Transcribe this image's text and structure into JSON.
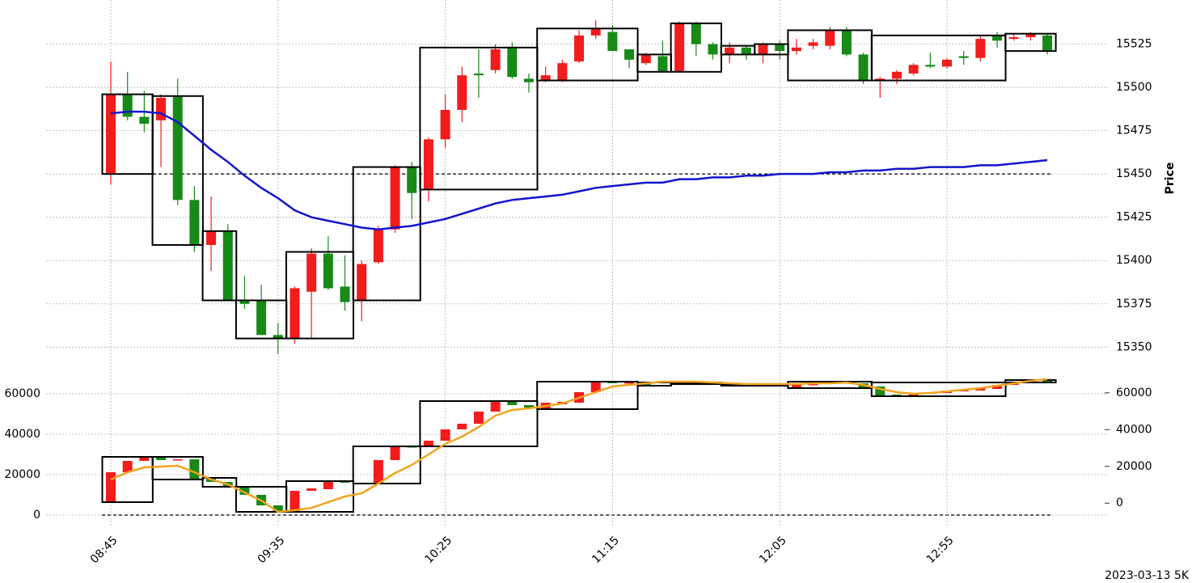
{
  "chart_data": [
    {
      "type": "candlestick",
      "y_label": "Price",
      "ylim": [
        15345,
        15550
      ],
      "yticks": [
        15350,
        15375,
        15400,
        15425,
        15450,
        15475,
        15500,
        15525
      ],
      "grid": true,
      "up_color": "#f21c1c",
      "down_color": "#178a17",
      "hline": 15450,
      "open": [
        15450,
        15496,
        15483,
        15481,
        15495,
        15435,
        15409,
        15417,
        15377,
        15377,
        15357,
        15355,
        15382,
        15404,
        15385,
        15377,
        15399,
        15418,
        15454,
        15441,
        15470,
        15487,
        15508,
        15510,
        15523,
        15505,
        15504,
        15504,
        15515,
        15530,
        15532,
        15522,
        15514,
        15518,
        15509,
        15537,
        15525,
        15519,
        15523,
        15519,
        15525,
        15521,
        15524,
        15524,
        15533,
        15519,
        15504,
        15505,
        15508,
        15513,
        15512,
        15518,
        15517,
        15530,
        15528,
        15529,
        15530
      ],
      "high": [
        15515,
        15509,
        15498,
        15496,
        15505,
        15443,
        15437,
        15421,
        15391,
        15386,
        15364,
        15385,
        15407,
        15414,
        15403,
        15400,
        15420,
        15455,
        15457,
        15471,
        15496,
        15512,
        15522,
        15525,
        15526,
        15508,
        15512,
        15516,
        15533,
        15539,
        15536,
        15522,
        15520,
        15527,
        15538,
        15538,
        15526,
        15526,
        15524,
        15526,
        15527,
        15528,
        15528,
        15535,
        15535,
        15520,
        15506,
        15510,
        15514,
        15520,
        15517,
        15521,
        15530,
        15532,
        15531,
        15532,
        15531
      ],
      "low": [
        15444,
        15481,
        15474,
        15454,
        15432,
        15405,
        15394,
        15377,
        15372,
        15357,
        15346,
        15352,
        15355,
        15383,
        15371,
        15365,
        15398,
        15416,
        15424,
        15434,
        15465,
        15480,
        15494,
        15508,
        15505,
        15497,
        15503,
        15503,
        15514,
        15528,
        15521,
        15511,
        15513,
        15509,
        15509,
        15518,
        15516,
        15514,
        15516,
        15514,
        15516,
        15519,
        15522,
        15522,
        15518,
        15502,
        15494,
        15502,
        15507,
        15511,
        15511,
        15513,
        15515,
        15523,
        15527,
        15527,
        15519
      ],
      "close": [
        15496,
        15483,
        15479,
        15494,
        15435,
        15409,
        15417,
        15377,
        15375,
        15357,
        15355,
        15384,
        15404,
        15384,
        15376,
        15398,
        15418,
        15454,
        15439,
        15470,
        15487,
        15507,
        15507,
        15522,
        15506,
        15503,
        15507,
        15514,
        15530,
        15534,
        15521,
        15516,
        15519,
        15509,
        15537,
        15525,
        15519,
        15523,
        15519,
        15525,
        15521,
        15523,
        15526,
        15533,
        15519,
        15504,
        15505,
        15509,
        15513,
        15512,
        15516,
        15517,
        15528,
        15527,
        15529,
        15531,
        15521
      ],
      "lines": [
        {
          "color": "#1414cc",
          "values": [
            15485,
            15486,
            15486,
            15485,
            15480,
            15472,
            15464,
            15457,
            15449,
            15442,
            15436,
            15429,
            15425,
            15423,
            15421,
            15419,
            15418,
            15419,
            15420,
            15422,
            15424,
            15427,
            15430,
            15433,
            15435,
            15436,
            15437,
            15438,
            15440,
            15442,
            15443,
            15444,
            15445,
            15445,
            15447,
            15447,
            15448,
            15448,
            15449,
            15449,
            15450,
            15450,
            15450,
            15451,
            15451,
            15452,
            15452,
            15453,
            15453,
            15454,
            15454,
            15454,
            15455,
            15455,
            15456,
            15457,
            15458
          ]
        }
      ],
      "boxes": [
        {
          "first": 0,
          "last": 2,
          "low": 15450,
          "high": 15496
        },
        {
          "first": 3,
          "last": 5,
          "low": 15409,
          "high": 15495
        },
        {
          "first": 6,
          "last": 7,
          "low": 15377,
          "high": 15417
        },
        {
          "first": 8,
          "last": 10,
          "low": 15355,
          "high": 15377
        },
        {
          "first": 11,
          "last": 14,
          "low": 15355,
          "high": 15405
        },
        {
          "first": 15,
          "last": 18,
          "low": 15377,
          "high": 15454
        },
        {
          "first": 19,
          "last": 25,
          "low": 15441,
          "high": 15523
        },
        {
          "first": 26,
          "last": 31,
          "low": 15504,
          "high": 15534
        },
        {
          "first": 32,
          "last": 33,
          "low": 15509,
          "high": 15519
        },
        {
          "first": 34,
          "last": 36,
          "low": 15509,
          "high": 15537
        },
        {
          "first": 37,
          "last": 38,
          "low": 15519,
          "high": 15524
        },
        {
          "first": 39,
          "last": 40,
          "low": 15519,
          "high": 15525
        },
        {
          "first": 41,
          "last": 45,
          "low": 15504,
          "high": 15533
        },
        {
          "first": 46,
          "last": 53,
          "low": 15504,
          "high": 15530
        },
        {
          "first": 54,
          "last": 56,
          "low": 15521,
          "high": 15531
        }
      ]
    },
    {
      "type": "candlestick",
      "footer": "2023-03-13 5K",
      "categories": [
        "08:45",
        null,
        null,
        null,
        null,
        null,
        null,
        null,
        null,
        null,
        "09:35",
        null,
        null,
        null,
        null,
        null,
        null,
        null,
        null,
        null,
        "10:25",
        null,
        null,
        null,
        null,
        null,
        null,
        null,
        null,
        null,
        "11:15",
        null,
        null,
        null,
        null,
        null,
        null,
        null,
        null,
        null,
        "12:05",
        null,
        null,
        null,
        null,
        null,
        null,
        null,
        null,
        null,
        "12:55",
        null,
        null,
        null,
        null,
        null,
        null
      ],
      "ylim": [
        -5000,
        75000
      ],
      "yticks": [
        0,
        20000,
        40000,
        60000
      ],
      "grid": true,
      "y2lim": [
        -12000,
        76000
      ],
      "y2ticks": [
        0,
        20000,
        40000,
        60000
      ],
      "up_color": "#f21c1c",
      "down_color": "#178a17",
      "hline": 0,
      "open": [
        6400,
        21200,
        26800,
        28400,
        27200,
        27600,
        18400,
        16400,
        14000,
        10000,
        4800,
        1600,
        12000,
        12800,
        16800,
        16000,
        16000,
        27200,
        34000,
        34400,
        36800,
        42400,
        45200,
        51200,
        56400,
        54400,
        52400,
        54800,
        55600,
        60800,
        66000,
        65200,
        65600,
        64000,
        64800,
        65600,
        65200,
        64800,
        64000,
        64000,
        64400,
        62800,
        64400,
        64800,
        66000,
        65200,
        63600,
        59600,
        58800,
        60000,
        60400,
        61200,
        61600,
        62400,
        64400,
        65600,
        66800
      ],
      "close": [
        21200,
        26800,
        28400,
        27200,
        27600,
        17600,
        16400,
        14000,
        10000,
        4800,
        1600,
        12000,
        13200,
        16400,
        16000,
        15600,
        27200,
        33600,
        33600,
        36800,
        42400,
        45200,
        51200,
        56400,
        54400,
        53200,
        55600,
        56000,
        60800,
        65600,
        65200,
        65600,
        64000,
        64400,
        65600,
        65200,
        64800,
        64000,
        64400,
        64400,
        64000,
        64400,
        64800,
        66000,
        65200,
        62800,
        58800,
        58800,
        60000,
        60800,
        61600,
        62000,
        62800,
        64400,
        65600,
        66400,
        65600
      ],
      "lines": [
        {
          "color": "#f0a41c",
          "values": [
            17600,
            21200,
            23600,
            24000,
            24400,
            21200,
            17600,
            15200,
            11200,
            7200,
            1600,
            2400,
            3600,
            6400,
            9200,
            10800,
            15600,
            20800,
            24800,
            30000,
            35200,
            38800,
            43600,
            49200,
            52000,
            52800,
            54000,
            55200,
            58000,
            60800,
            63600,
            64400,
            65200,
            66000,
            66000,
            66000,
            65600,
            65200,
            64800,
            64800,
            64800,
            64800,
            65200,
            65200,
            65600,
            64400,
            62400,
            60800,
            60000,
            60400,
            61200,
            62000,
            62800,
            64000,
            65200,
            66400,
            67200
          ]
        }
      ],
      "boxes": [
        {
          "first": 0,
          "last": 2,
          "low": 6400,
          "high": 28800
        },
        {
          "first": 3,
          "last": 5,
          "low": 17600,
          "high": 28800
        },
        {
          "first": 6,
          "last": 7,
          "low": 14000,
          "high": 18400
        },
        {
          "first": 8,
          "last": 10,
          "low": 1600,
          "high": 14000
        },
        {
          "first": 11,
          "last": 14,
          "low": 1600,
          "high": 16800
        },
        {
          "first": 15,
          "last": 18,
          "low": 15600,
          "high": 34000
        },
        {
          "first": 19,
          "last": 25,
          "low": 34000,
          "high": 56400
        },
        {
          "first": 26,
          "last": 31,
          "low": 52400,
          "high": 66000
        },
        {
          "first": 32,
          "last": 33,
          "low": 64000,
          "high": 65600
        },
        {
          "first": 34,
          "last": 36,
          "low": 64800,
          "high": 65600
        },
        {
          "first": 37,
          "last": 38,
          "low": 64000,
          "high": 64800
        },
        {
          "first": 39,
          "last": 40,
          "low": 64000,
          "high": 64400
        },
        {
          "first": 41,
          "last": 45,
          "low": 62800,
          "high": 66000
        },
        {
          "first": 46,
          "last": 53,
          "low": 58800,
          "high": 65600
        },
        {
          "first": 54,
          "last": 56,
          "low": 65600,
          "high": 66800
        }
      ]
    }
  ]
}
